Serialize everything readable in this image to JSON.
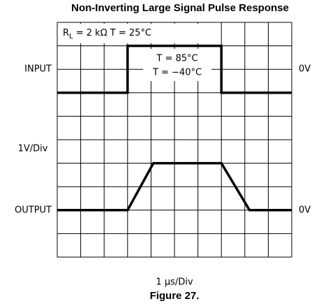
{
  "chart_data": {
    "type": "line",
    "title": "Non-Inverting Large Signal Pulse Response",
    "x_label": "1 μs/Div",
    "y_label": "1V/Div",
    "caption": "Figure 27.",
    "xlim": [
      0,
      10
    ],
    "ylim": [
      0,
      10
    ],
    "xticks": [
      0,
      1,
      2,
      3,
      4,
      5,
      6,
      7,
      8,
      9,
      10
    ],
    "yticks": [
      0,
      1,
      2,
      3,
      4,
      5,
      6,
      7,
      8,
      9,
      10
    ],
    "grid": true,
    "series": [
      {
        "name": "INPUT",
        "right_label": "0V",
        "color": "#000000",
        "x": [
          0,
          3,
          3,
          7,
          7,
          10
        ],
        "values": [
          7,
          7,
          9,
          9,
          7,
          7
        ]
      },
      {
        "name": "OUTPUT",
        "right_label": "0V",
        "color": "#000000",
        "x": [
          0,
          3,
          4.1,
          7,
          8.2,
          10
        ],
        "values": [
          2,
          2,
          4,
          4,
          2,
          2
        ]
      }
    ],
    "annotations": [
      {
        "main": "R",
        "sub": "L",
        "rest": " = 2 kΩ   T = 25°C"
      },
      {
        "lines": [
          "T = 85°C",
          "T = −40°C"
        ]
      }
    ]
  }
}
